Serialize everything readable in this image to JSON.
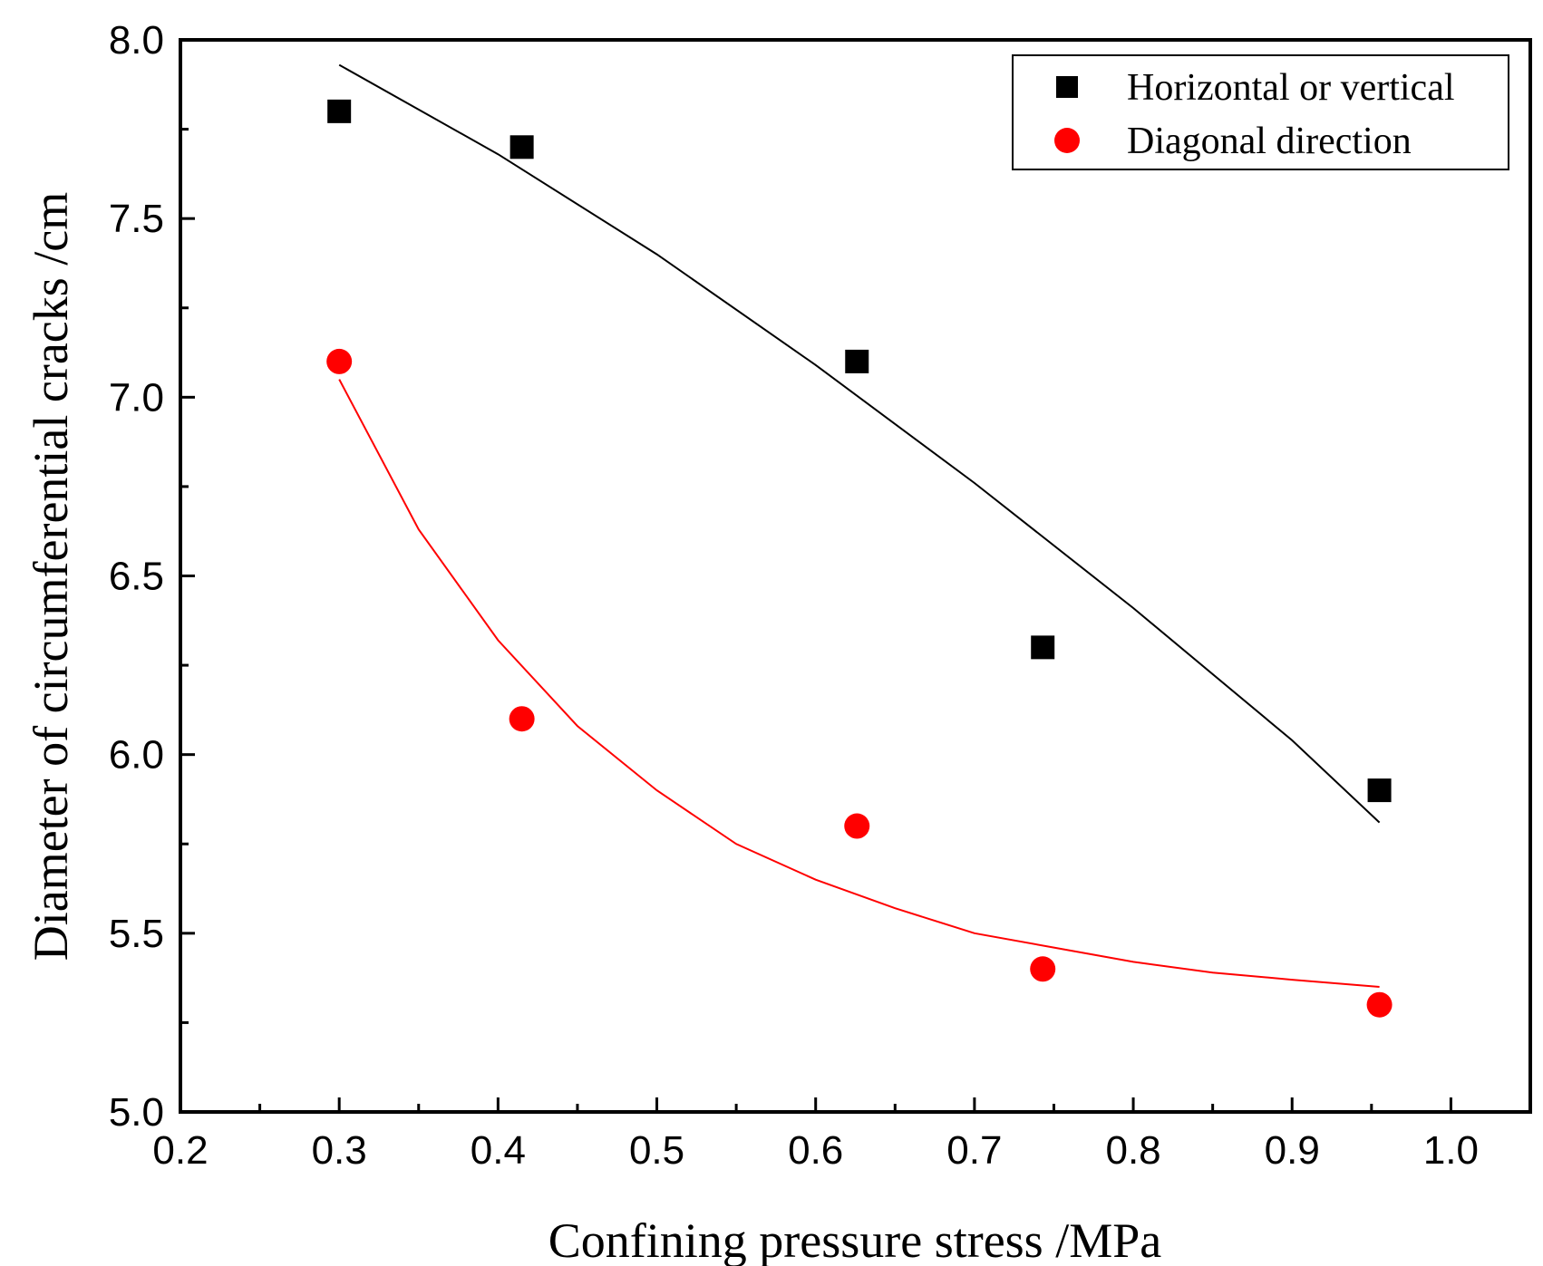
{
  "chart_data": {
    "type": "scatter",
    "title": "",
    "xlabel": "Confining pressure stress /MPa",
    "ylabel": "Diameter of circumferential cracks /cm",
    "xlim": [
      0.2,
      1.05
    ],
    "ylim": [
      5.0,
      8.0
    ],
    "x_ticks": [
      "0.2",
      "0.3",
      "0.4",
      "0.5",
      "0.6",
      "0.7",
      "0.8",
      "0.9",
      "1.0"
    ],
    "y_ticks": [
      "5.0",
      "5.5",
      "6.0",
      "6.5",
      "7.0",
      "7.5",
      "8.0"
    ],
    "grid": false,
    "legend_position": "top-right",
    "series": [
      {
        "name": "Horizontal or vertical",
        "marker": "square",
        "color": "#000000",
        "x": [
          0.3,
          0.415,
          0.626,
          0.743,
          0.955
        ],
        "y": [
          7.8,
          7.7,
          7.1,
          6.3,
          5.9
        ],
        "fit": [
          [
            0.3,
            7.93
          ],
          [
            0.4,
            7.68
          ],
          [
            0.5,
            7.4
          ],
          [
            0.6,
            7.09
          ],
          [
            0.7,
            6.76
          ],
          [
            0.8,
            6.41
          ],
          [
            0.9,
            6.04
          ],
          [
            0.955,
            5.81
          ]
        ]
      },
      {
        "name": "Diagonal direction",
        "marker": "circle",
        "color": "#ff0000",
        "x": [
          0.3,
          0.415,
          0.626,
          0.743,
          0.955
        ],
        "y": [
          7.1,
          6.1,
          5.8,
          5.4,
          5.3
        ],
        "fit": [
          [
            0.3,
            7.05
          ],
          [
            0.35,
            6.63
          ],
          [
            0.4,
            6.32
          ],
          [
            0.45,
            6.08
          ],
          [
            0.5,
            5.9
          ],
          [
            0.55,
            5.75
          ],
          [
            0.6,
            5.65
          ],
          [
            0.65,
            5.57
          ],
          [
            0.7,
            5.5
          ],
          [
            0.75,
            5.46
          ],
          [
            0.8,
            5.42
          ],
          [
            0.85,
            5.39
          ],
          [
            0.9,
            5.37
          ],
          [
            0.955,
            5.35
          ]
        ]
      }
    ]
  }
}
